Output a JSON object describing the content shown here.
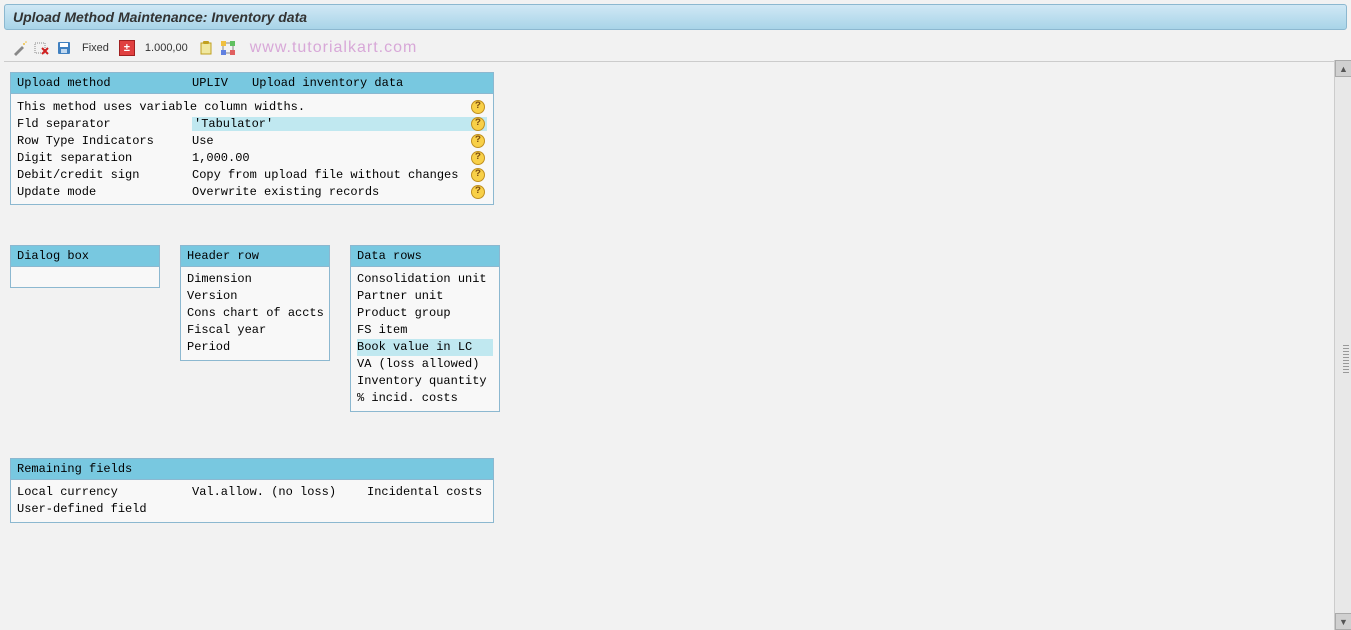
{
  "title": "Upload Method Maintenance: Inventory data",
  "toolbar": {
    "fixed_label": "Fixed",
    "number_value": "1.000,00"
  },
  "watermark": "www.tutorialkart.com",
  "main_panel": {
    "header": {
      "label": "Upload method",
      "code": "UPLIV",
      "desc": "Upload inventory data"
    },
    "note": "This method uses variable column widths.",
    "rows": [
      {
        "k": "Fld separator",
        "v": "'Tabulator'",
        "hl": true
      },
      {
        "k": "Row Type Indicators",
        "v": "Use",
        "hl": false
      },
      {
        "k": "Digit separation",
        "v": "1,000.00",
        "hl": false
      },
      {
        "k": "Debit/credit sign",
        "v": "Copy from upload file without changes",
        "hl": false
      },
      {
        "k": "Update mode",
        "v": "Overwrite existing records",
        "hl": false
      }
    ]
  },
  "dialog_box": {
    "header": "Dialog box"
  },
  "header_row": {
    "header": "Header row",
    "items": [
      {
        "t": "Dimension",
        "hl": false
      },
      {
        "t": "Version",
        "hl": false
      },
      {
        "t": "Cons chart of accts",
        "hl": false
      },
      {
        "t": "Fiscal year",
        "hl": false
      },
      {
        "t": "Period",
        "hl": false
      }
    ]
  },
  "data_rows": {
    "header": "Data rows",
    "items": [
      {
        "t": "Consolidation unit",
        "hl": false
      },
      {
        "t": "Partner unit",
        "hl": false
      },
      {
        "t": "Product group",
        "hl": false
      },
      {
        "t": "FS item",
        "hl": false
      },
      {
        "t": "Book value in LC",
        "hl": true
      },
      {
        "t": "VA (loss allowed)",
        "hl": false
      },
      {
        "t": "Inventory quantity",
        "hl": false
      },
      {
        "t": "% incid. costs",
        "hl": false
      }
    ]
  },
  "remaining": {
    "header": "Remaining fields",
    "rows": [
      {
        "k": "Local currency",
        "v1": "Val.allow. (no loss)",
        "v2": "Incidental costs"
      },
      {
        "k": "User-defined field",
        "v1": "",
        "v2": ""
      }
    ]
  },
  "colors": {
    "title_gradient_top": "#d0e8f5",
    "title_gradient_bottom": "#a8d4e8",
    "panel_border": "#8cb8d0",
    "panel_header_bg": "#78c8e0",
    "highlight_bg": "#c0e8f0",
    "help_bg": "#f8d048",
    "red_box": "#e04040",
    "body_bg": "#f2f2f2",
    "watermark": "#d8a8d8"
  }
}
